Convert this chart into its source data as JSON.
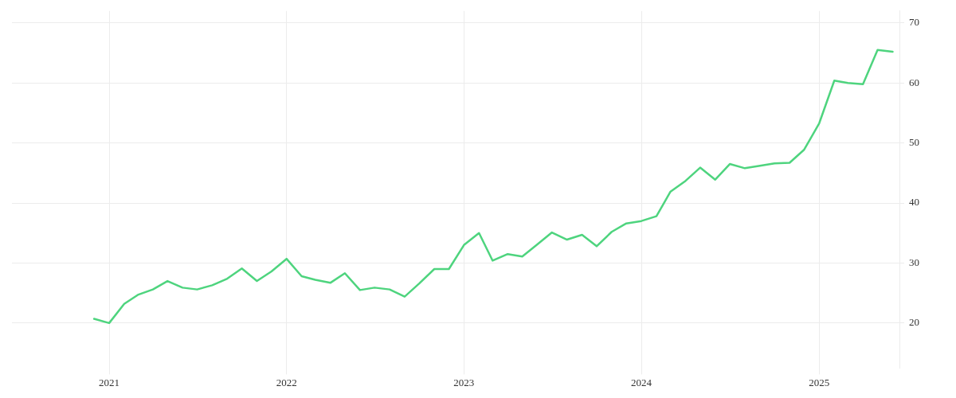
{
  "chart_data": {
    "type": "line",
    "x": [
      "2020-12",
      "2021-01",
      "2021-02",
      "2021-03",
      "2021-04",
      "2021-05",
      "2021-06",
      "2021-07",
      "2021-08",
      "2021-09",
      "2021-10",
      "2021-11",
      "2021-12",
      "2022-01",
      "2022-02",
      "2022-03",
      "2022-04",
      "2022-05",
      "2022-06",
      "2022-07",
      "2022-08",
      "2022-09",
      "2022-10",
      "2022-11",
      "2022-12",
      "2023-01",
      "2023-02",
      "2023-03",
      "2023-04",
      "2023-05",
      "2023-06",
      "2023-07",
      "2023-08",
      "2023-09",
      "2023-10",
      "2023-11",
      "2023-12",
      "2024-01",
      "2024-02",
      "2024-03",
      "2024-04",
      "2024-05",
      "2024-06",
      "2024-07",
      "2024-08",
      "2024-09",
      "2024-10",
      "2024-11",
      "2024-12",
      "2025-01",
      "2025-02",
      "2025-03",
      "2025-04",
      "2025-05",
      "2025-06"
    ],
    "series": [
      {
        "color": "#4ed47e",
        "values": [
          20.7,
          20.0,
          23.2,
          24.7,
          25.6,
          27.0,
          25.9,
          25.6,
          26.3,
          27.4,
          29.1,
          27.0,
          28.6,
          30.7,
          27.8,
          27.2,
          26.7,
          28.3,
          25.5,
          25.9,
          25.6,
          24.4,
          26.6,
          29.0,
          29.0,
          33.0,
          35.0,
          30.4,
          31.5,
          31.1,
          33.1,
          35.1,
          33.9,
          34.7,
          32.8,
          35.2,
          36.6,
          37.0,
          37.8,
          41.9,
          43.7,
          45.9,
          43.9,
          46.5,
          45.8,
          46.2,
          46.6,
          46.7,
          48.9,
          53.3,
          60.4,
          60.0,
          59.8,
          65.5,
          65.2
        ]
      }
    ],
    "xlim": [
      "2020-06-15",
      "2025-06-15"
    ],
    "xticks": [
      "2021",
      "2022",
      "2023",
      "2024",
      "2025"
    ],
    "ylim": [
      12.5,
      72
    ],
    "yticks": [
      20,
      30,
      40,
      50,
      60,
      70
    ],
    "grid": true,
    "legend": false,
    "marker": "none",
    "line_style": "solid"
  }
}
